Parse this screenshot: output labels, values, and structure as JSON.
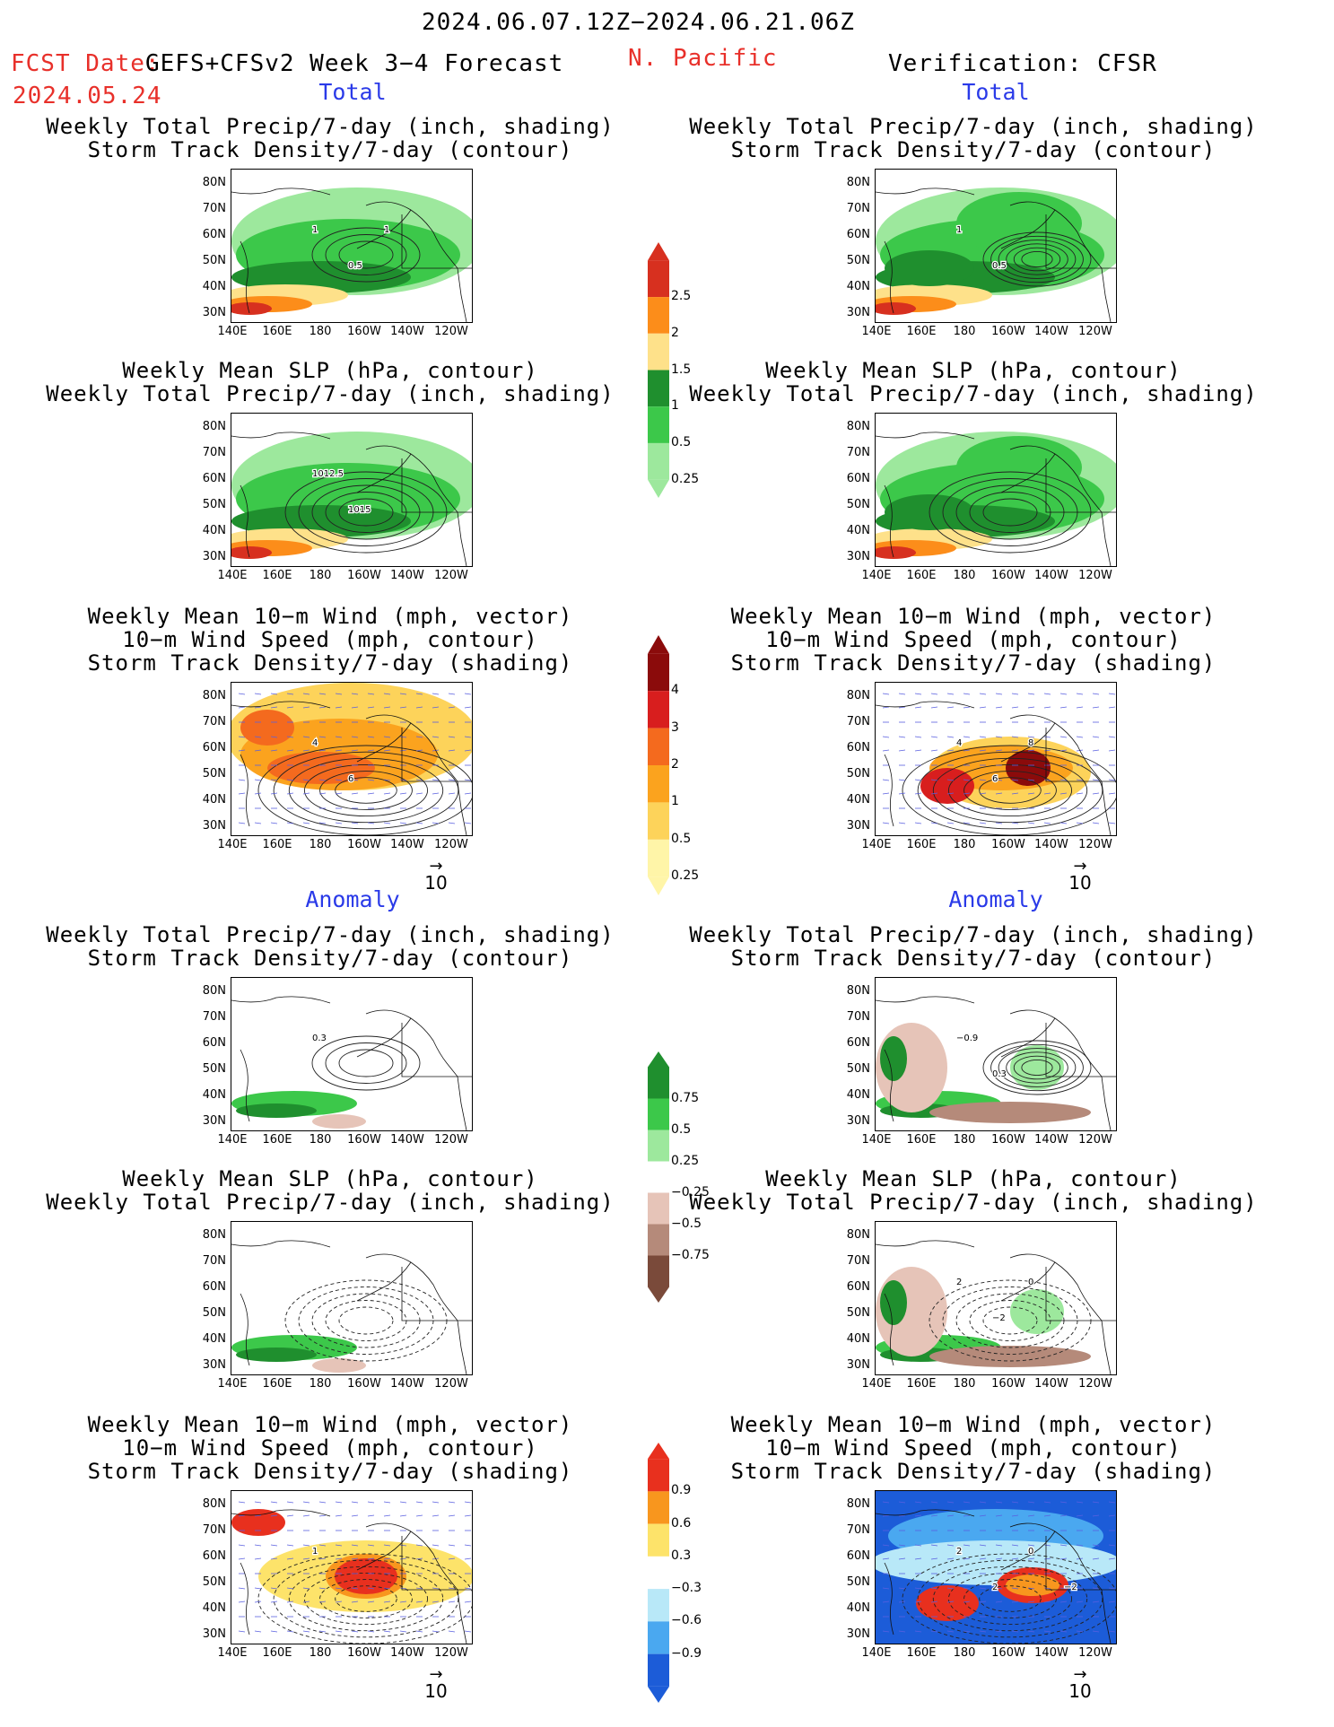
{
  "header": {
    "period": "2024.06.07.12Z−2024.06.21.06Z",
    "fcst_date_label": "FCST Date:",
    "model_label": "GEFS+CFSv2 Week 3−4 Forecast",
    "region": "N. Pacific",
    "verification": "Verification: CFSR",
    "fcst_date": "2024.05.24"
  },
  "sections": {
    "total": "Total",
    "anomaly": "Anomaly"
  },
  "titles": {
    "precip_storm": [
      "Weekly Total Precip/7-day (inch, shading)",
      "Storm Track Density/7-day (contour)"
    ],
    "slp_precip": [
      "Weekly Mean SLP (hPa, contour)",
      "Weekly Total Precip/7-day (inch, shading)"
    ],
    "wind_storm": [
      "Weekly Mean 10−m Wind (mph, vector)",
      "10−m Wind Speed (mph, contour)",
      "Storm Track Density/7-day (shading)"
    ]
  },
  "axes": {
    "lat_labels": [
      "80N",
      "70N",
      "60N",
      "50N",
      "40N",
      "30N"
    ],
    "lon_labels": [
      "140E",
      "160E",
      "180",
      "160W",
      "140W",
      "120W"
    ],
    "vector_ref": "10"
  },
  "colorbars": {
    "precip_total": {
      "labels": [
        "2.5",
        "2",
        "1.5",
        "1",
        "0.5",
        "0.25"
      ],
      "colors": [
        "#d7301f",
        "#fc8d1a",
        "#fee18a",
        "#1f8f2e",
        "#3cc84a",
        "#9de89d"
      ]
    },
    "storm_total": {
      "labels": [
        "4",
        "3",
        "2",
        "1",
        "0.5",
        "0.25"
      ],
      "colors": [
        "#8b0b0b",
        "#d81e1e",
        "#f46a1e",
        "#fba31e",
        "#fdd35a",
        "#fff5a8"
      ]
    },
    "precip_anom": {
      "labels": [
        "0.75",
        "0.5",
        "0.25",
        "−0.25",
        "−0.5",
        "−0.75"
      ],
      "colors": [
        "#1f8f2e",
        "#3cc84a",
        "#9de89d",
        "#ffffff",
        "#e6c4b8",
        "#b58a7a",
        "#7a4a3a"
      ]
    },
    "storm_anom": {
      "labels": [
        "0.9",
        "0.6",
        "0.3",
        "−0.3",
        "−0.6",
        "−0.9"
      ],
      "colors": [
        "#e8301e",
        "#f8961e",
        "#fde36a",
        "#ffffff",
        "#b8e8f8",
        "#4aa8f0",
        "#1c5cd8"
      ]
    }
  },
  "contour_labels": {
    "fcst_total_precip": [
      "1",
      "0.5",
      "1"
    ],
    "fcst_total_slp": [
      "1012.5",
      "1015"
    ],
    "fcst_total_wind": [
      "4",
      "6"
    ],
    "obs_total_precip": [
      "1",
      "0.5"
    ],
    "obs_total_wind": [
      "4",
      "6",
      "8"
    ],
    "fcst_anom_precip": [
      "0.3"
    ],
    "obs_anom_precip": [
      "−0.9",
      "0.3"
    ],
    "obs_anom_slp": [
      "2",
      "−2",
      "0"
    ],
    "fcst_anom_wind": [
      "1"
    ],
    "obs_anom_wind": [
      "2",
      "2",
      "0",
      "−2"
    ]
  }
}
